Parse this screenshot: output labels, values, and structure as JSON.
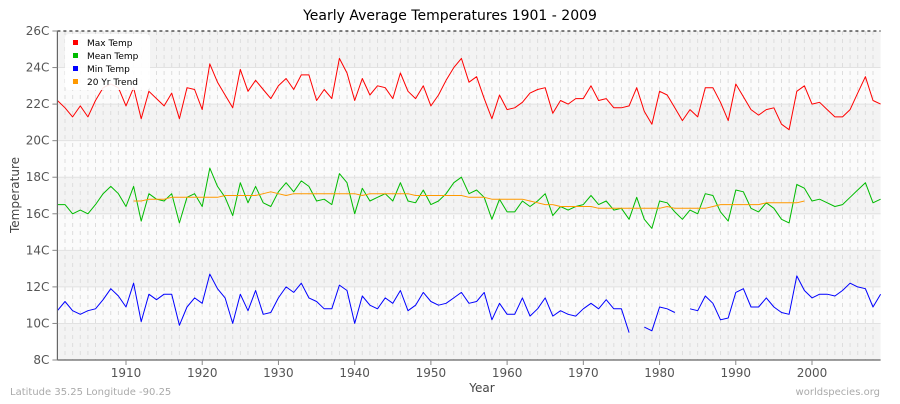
{
  "chart_data": {
    "type": "line",
    "title": "Yearly Average Temperatures 1901 - 2009",
    "xlabel": "Year",
    "ylabel": "Temperature",
    "xlim": [
      1901,
      2009
    ],
    "ylim": [
      8,
      26
    ],
    "x_ticks": [
      1910,
      1920,
      1930,
      1940,
      1950,
      1960,
      1970,
      1980,
      1990,
      2000
    ],
    "y_ticks": [
      8,
      10,
      12,
      14,
      16,
      18,
      20,
      22,
      24,
      26
    ],
    "y_tick_labels": [
      "8C",
      "10C",
      "12C",
      "14C",
      "16C",
      "18C",
      "20C",
      "22C",
      "24C",
      "26C"
    ],
    "grid": true,
    "legend_position": "top-left",
    "x_start": 1901,
    "series": [
      {
        "name": "Max Temp",
        "color": "#ff0000",
        "start": 1901,
        "values": [
          22.2,
          21.8,
          21.3,
          21.9,
          21.3,
          22.2,
          22.9,
          23.1,
          22.9,
          21.9,
          22.9,
          21.2,
          22.7,
          22.3,
          21.9,
          22.6,
          21.2,
          22.9,
          22.8,
          21.7,
          24.2,
          23.2,
          22.5,
          21.8,
          23.9,
          22.7,
          23.3,
          22.8,
          22.3,
          23.0,
          23.4,
          22.8,
          23.6,
          23.6,
          22.2,
          22.8,
          22.3,
          24.5,
          23.7,
          22.2,
          23.4,
          22.5,
          23.0,
          22.9,
          22.3,
          23.7,
          22.7,
          22.3,
          23.0,
          21.9,
          22.5,
          23.3,
          24.0,
          24.5,
          23.2,
          23.5,
          22.3,
          21.2,
          22.5,
          21.7,
          21.8,
          22.1,
          22.6,
          22.8,
          22.9,
          21.5,
          22.2,
          22.0,
          22.3,
          22.3,
          23.0,
          22.2,
          22.3,
          21.8,
          21.8,
          21.9,
          22.9,
          21.6,
          20.9,
          22.7,
          22.5,
          21.8,
          21.1,
          21.7,
          21.3,
          22.9,
          22.9,
          22.1,
          21.1,
          23.1,
          22.4,
          21.7,
          21.4,
          21.7,
          21.8,
          20.9,
          20.6,
          22.7,
          23.0,
          22.0,
          22.1,
          21.7,
          21.3,
          21.3,
          21.7,
          22.6,
          23.5,
          22.2,
          22.0
        ]
      },
      {
        "name": "Mean Temp",
        "color": "#00bb00",
        "start": 1901,
        "values": [
          16.5,
          16.5,
          16.0,
          16.2,
          16.0,
          16.5,
          17.1,
          17.5,
          17.1,
          16.4,
          17.5,
          15.6,
          17.1,
          16.8,
          16.7,
          17.1,
          15.5,
          16.9,
          17.1,
          16.4,
          18.5,
          17.5,
          16.9,
          15.9,
          17.7,
          16.6,
          17.5,
          16.6,
          16.4,
          17.2,
          17.7,
          17.2,
          17.8,
          17.5,
          16.7,
          16.8,
          16.5,
          18.2,
          17.7,
          16.0,
          17.4,
          16.7,
          16.9,
          17.1,
          16.7,
          17.7,
          16.7,
          16.6,
          17.3,
          16.5,
          16.7,
          17.1,
          17.7,
          18.0,
          17.1,
          17.3,
          16.9,
          15.7,
          16.8,
          16.1,
          16.1,
          16.7,
          16.4,
          16.7,
          17.1,
          15.9,
          16.4,
          16.2,
          16.4,
          16.5,
          17.0,
          16.5,
          16.7,
          16.2,
          16.3,
          15.7,
          16.9,
          15.7,
          15.2,
          16.7,
          16.6,
          16.1,
          15.7,
          16.2,
          16.0,
          17.1,
          17.0,
          16.1,
          15.6,
          17.3,
          17.2,
          16.3,
          16.1,
          16.6,
          16.3,
          15.7,
          15.5,
          17.6,
          17.4,
          16.7,
          16.8,
          16.6,
          16.4,
          16.5,
          16.9,
          17.3,
          17.7,
          16.6,
          16.8
        ]
      },
      {
        "name": "Min Temp",
        "color": "#0000ff",
        "start": 1901,
        "values": [
          10.7,
          11.2,
          10.7,
          10.5,
          10.7,
          10.8,
          11.3,
          11.9,
          11.5,
          10.9,
          12.2,
          10.1,
          11.6,
          11.3,
          11.6,
          11.6,
          9.9,
          10.9,
          11.4,
          11.1,
          12.7,
          11.9,
          11.4,
          10.0,
          11.6,
          10.7,
          11.8,
          10.5,
          10.6,
          11.4,
          12.0,
          11.7,
          12.2,
          11.4,
          11.2,
          10.8,
          10.8,
          12.1,
          11.8,
          10.0,
          11.5,
          11.0,
          10.8,
          11.4,
          11.1,
          11.8,
          10.7,
          11.0,
          11.7,
          11.2,
          11.0,
          11.1,
          11.4,
          11.7,
          11.1,
          11.2,
          11.7,
          10.2,
          11.1,
          10.5,
          10.5,
          11.4,
          10.4,
          10.8,
          11.4,
          10.4,
          10.7,
          10.5,
          10.4,
          10.8,
          11.1,
          10.8,
          11.3,
          10.8,
          10.8,
          9.5,
          null,
          9.8,
          9.6,
          10.9,
          10.8,
          10.6,
          null,
          10.8,
          10.7,
          11.5,
          11.1,
          10.2,
          10.3,
          11.7,
          11.9,
          10.9,
          10.9,
          11.4,
          10.9,
          10.6,
          10.5,
          12.6,
          11.8,
          11.4,
          11.6,
          11.6,
          11.5,
          11.8,
          12.2,
          12.0,
          11.9,
          10.9,
          11.6
        ]
      },
      {
        "name": "20 Yr Trend",
        "color": "#ff9900",
        "start": 1911,
        "values": [
          16.7,
          16.7,
          16.8,
          16.8,
          16.8,
          16.9,
          16.9,
          16.9,
          16.9,
          16.9,
          16.9,
          16.9,
          17.0,
          17.0,
          17.0,
          17.0,
          17.0,
          17.1,
          17.2,
          17.1,
          17.0,
          17.1,
          17.1,
          17.1,
          17.1,
          17.1,
          17.1,
          17.1,
          17.1,
          17.1,
          17.0,
          17.1,
          17.1,
          17.1,
          17.1,
          17.1,
          17.1,
          17.0,
          17.0,
          17.0,
          17.0,
          17.0,
          17.0,
          17.0,
          16.9,
          16.9,
          16.9,
          16.8,
          16.8,
          16.8,
          16.8,
          16.8,
          16.7,
          16.6,
          16.5,
          16.5,
          16.4,
          16.4,
          16.4,
          16.4,
          16.4,
          16.3,
          16.3,
          16.3,
          16.3,
          16.3,
          16.3,
          16.3,
          16.3,
          16.3,
          16.4,
          16.3,
          16.3,
          16.3,
          16.3,
          16.3,
          16.4,
          16.5,
          16.5,
          16.5,
          16.5,
          16.5,
          16.5,
          16.6,
          16.6,
          16.6,
          16.6,
          16.6,
          16.7
        ]
      }
    ]
  },
  "footer": {
    "location": "Latitude 35.25 Longitude -90.25",
    "source": "worldspecies.org"
  }
}
